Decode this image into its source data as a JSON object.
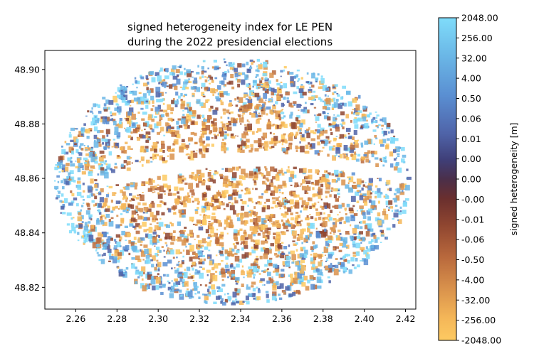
{
  "chart_data": {
    "type": "scatter",
    "title": "signed heterogeneity index for LE PEN\nduring the 2022 presidencial elections",
    "xlabel": "",
    "ylabel": "",
    "xlim": [
      2.245,
      2.425
    ],
    "ylim": [
      48.812,
      48.907
    ],
    "x_ticks": [
      "2.26",
      "2.28",
      "2.30",
      "2.32",
      "2.34",
      "2.36",
      "2.38",
      "2.40",
      "2.42"
    ],
    "y_ticks": [
      "48.82",
      "48.84",
      "48.86",
      "48.88",
      "48.90"
    ],
    "grid": false,
    "colorbar": {
      "label": "signed heterogeneity [m]",
      "ticks": [
        "2048.00",
        "256.00",
        "32.00",
        "4.00",
        "0.50",
        "0.06",
        "0.01",
        "0.00",
        "0.00",
        "-0.00",
        "-0.01",
        "-0.06",
        "-0.50",
        "-4.00",
        "-32.00",
        "-256.00",
        "-2048.00"
      ],
      "colors_top_to_bottom": [
        "#7fdcfa",
        "#6ab6e6",
        "#5a8fd2",
        "#4f63a8",
        "#3f3f78",
        "#4a2f4a",
        "#6a2f2e",
        "#8e4530",
        "#b8683c",
        "#d9924c",
        "#f4b658",
        "#fdca62"
      ]
    }
  }
}
